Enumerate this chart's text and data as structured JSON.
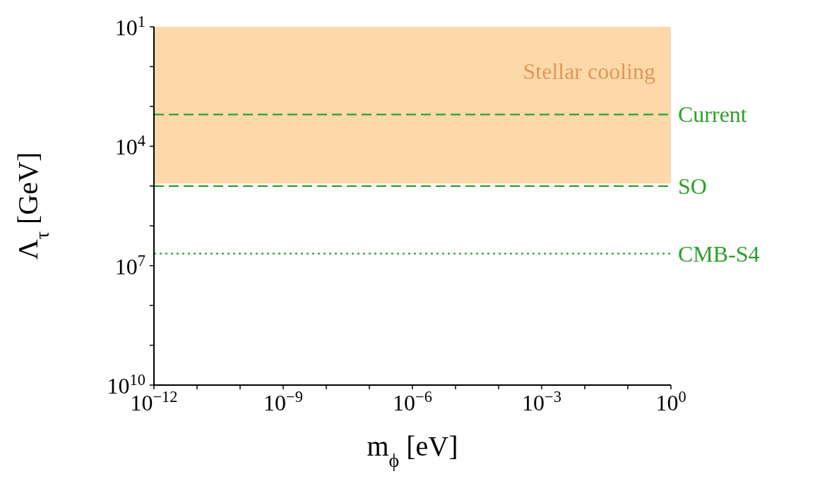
{
  "chart_data": {
    "type": "line",
    "xlabel": "m$_{ϕ}$ [eV]",
    "ylabel": "Λ$_{τ}$ [GeV]",
    "log": "xy",
    "xlim": [
      1e-12,
      1
    ],
    "ylim": [
      10000000000.0,
      10
    ],
    "xticks": [
      {
        "value": 1e-12,
        "label": "10$^{−12}$"
      },
      {
        "value": 1e-11,
        "label": null
      },
      {
        "value": 1e-10,
        "label": null
      },
      {
        "value": 1e-09,
        "label": "10$^{−9}$"
      },
      {
        "value": 1e-08,
        "label": null
      },
      {
        "value": 1e-07,
        "label": null
      },
      {
        "value": 1e-06,
        "label": "10$^{−6}$"
      },
      {
        "value": 1e-05,
        "label": null
      },
      {
        "value": 0.0001,
        "label": null
      },
      {
        "value": 0.001,
        "label": "10$^{−3}$"
      },
      {
        "value": 0.01,
        "label": null
      },
      {
        "value": 0.1,
        "label": null
      },
      {
        "value": 1,
        "label": "10$^{0}$"
      }
    ],
    "yticks": [
      {
        "value": 10,
        "label": "10$^{1}$"
      },
      {
        "value": 100,
        "label": null
      },
      {
        "value": 1000,
        "label": null
      },
      {
        "value": 10000,
        "label": "10$^{4}$"
      },
      {
        "value": 100000,
        "label": null
      },
      {
        "value": 1000000,
        "label": null
      },
      {
        "value": 10000000,
        "label": "10$^{7}$"
      },
      {
        "value": 100000000,
        "label": null
      },
      {
        "value": 1000000000,
        "label": null
      },
      {
        "value": 10000000000,
        "label": "10$^{10}$"
      }
    ],
    "bands": [
      {
        "axis": "y",
        "from": 10,
        "to": 87000,
        "label": "Stellar cooling",
        "color": "#fdd9a9"
      }
    ],
    "ref_lines": [
      {
        "axis": "y",
        "value": 1600,
        "label": "Current",
        "color": "#2ca02c",
        "line_style": "dashed"
      },
      {
        "axis": "y",
        "value": 100000,
        "label": "SO",
        "color": "#2ca02c",
        "line_style": "dashed"
      },
      {
        "axis": "y",
        "value": 5000000,
        "label": "CMB-S4",
        "color": "#2ca02c",
        "line_style": "dotted"
      }
    ]
  }
}
